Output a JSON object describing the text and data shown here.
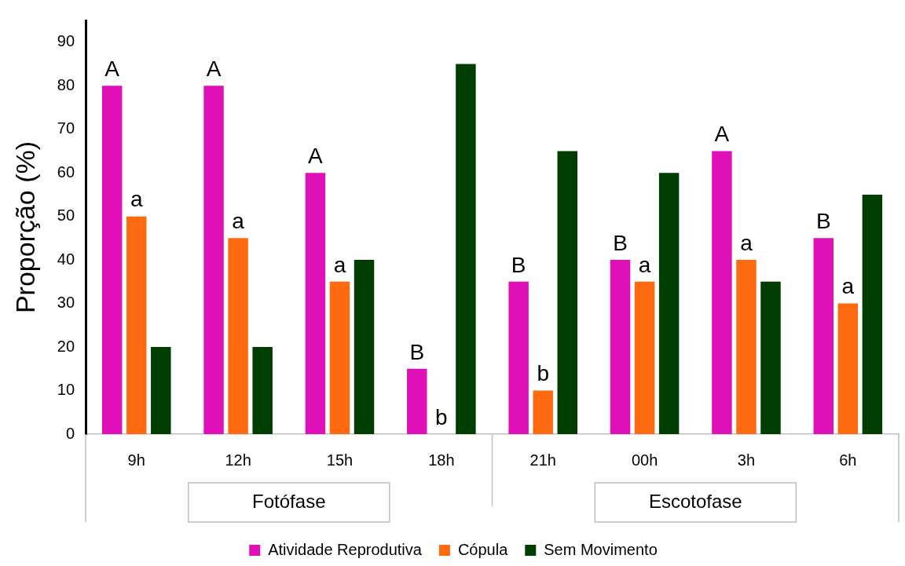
{
  "chart_data": {
    "type": "bar",
    "ylabel": "Proporção (%)",
    "categories": [
      "9h",
      "12h",
      "15h",
      "18h",
      "21h",
      "00h",
      "3h",
      "6h"
    ],
    "series": [
      {
        "name": "Atividade Reprodutiva",
        "color": "#e010b8",
        "values": [
          80,
          80,
          60,
          15,
          35,
          40,
          65,
          45
        ]
      },
      {
        "name": "Cópula",
        "color": "#ff6a10",
        "values": [
          50,
          45,
          35,
          0,
          10,
          35,
          40,
          30
        ]
      },
      {
        "name": "Sem Movimento",
        "color": "#003d00",
        "values": [
          20,
          20,
          40,
          85,
          65,
          60,
          35,
          55
        ]
      }
    ],
    "ylim": [
      0,
      95
    ],
    "yticks": [
      0,
      10,
      20,
      30,
      40,
      50,
      60,
      70,
      80,
      90
    ],
    "grid": false,
    "legend": "bottom",
    "annotations": [
      "Fotófase",
      "Escotofase",
      "A",
      "a",
      "A",
      "a",
      "A",
      "a",
      "B",
      "b",
      "B",
      "b",
      "B",
      "a",
      "A",
      "a",
      "B",
      "a"
    ]
  }
}
